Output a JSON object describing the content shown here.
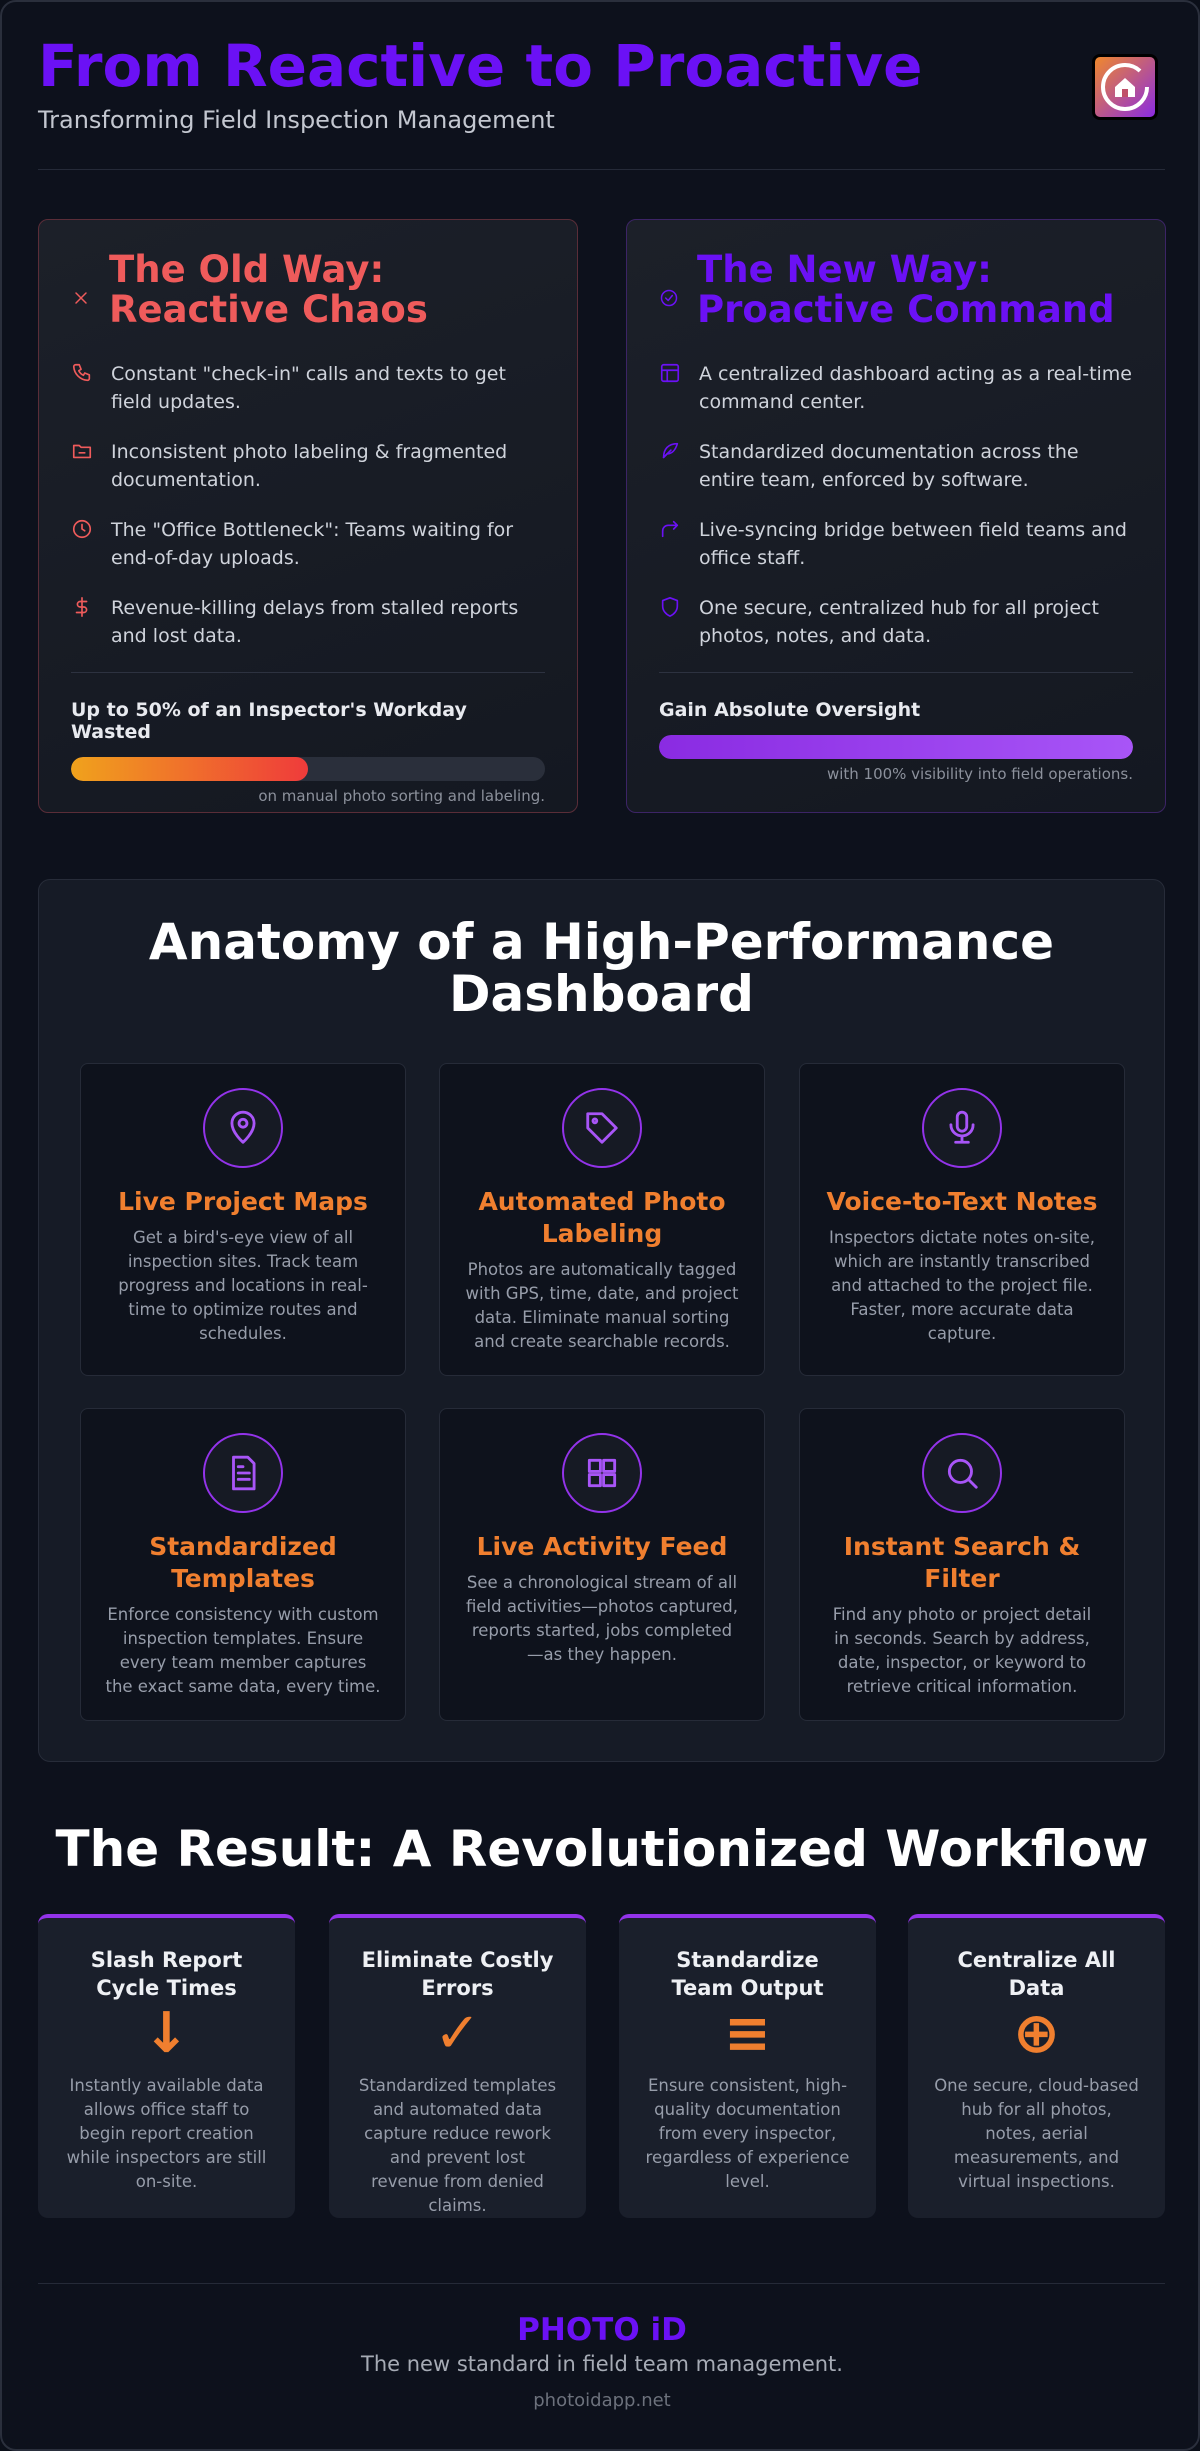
{
  "header": {
    "title": "From Reactive to Proactive",
    "subtitle": "Transforming Field Inspection Management"
  },
  "old_way": {
    "title": "The Old Way: Reactive Chaos",
    "items": [
      "Constant \"check-in\" calls and texts to get field updates.",
      "Inconsistent photo labeling & fragmented documentation.",
      "The \"Office Bottleneck\": Teams waiting for end-of-day uploads.",
      "Revenue-killing delays from stalled reports and lost data."
    ],
    "meter": {
      "label": "Up to 50% of an Inspector's Workday Wasted",
      "value": 50,
      "note": "on manual photo sorting and labeling."
    }
  },
  "new_way": {
    "title": "The New Way: Proactive Command",
    "items": [
      "A centralized dashboard acting as a real-time command center.",
      "Standardized documentation across the entire team, enforced by software.",
      "Live-syncing bridge between field teams and office staff.",
      "One secure, centralized hub for all project photos, notes, and data."
    ],
    "meter": {
      "label": "Gain Absolute Oversight",
      "value": 100,
      "note": "with 100% visibility into field operations."
    }
  },
  "dashboard": {
    "title": "Anatomy of a High-Performance Dashboard",
    "features": [
      {
        "title": "Live Project Maps",
        "text": "Get a bird's-eye view of all inspection sites. Track team progress and locations in real-time to optimize routes and schedules."
      },
      {
        "title": "Automated Photo Labeling",
        "text": "Photos are automatically tagged with GPS, time, date, and project data. Eliminate manual sorting and create searchable records."
      },
      {
        "title": "Voice-to-Text Notes",
        "text": "Inspectors dictate notes on-site, which are instantly transcribed and attached to the project file. Faster, more accurate data capture."
      },
      {
        "title": "Standardized Templates",
        "text": "Enforce consistency with custom inspection templates. Ensure every team member captures the exact same data, every time."
      },
      {
        "title": "Live Activity Feed",
        "text": "See a chronological stream of all field activities—photos captured, reports started, jobs completed—as they happen."
      },
      {
        "title": "Instant Search & Filter",
        "text": "Find any photo or project detail in seconds. Search by address, date, inspector, or keyword to retrieve critical information."
      }
    ]
  },
  "results": {
    "title": "The Result: A Revolutionized Workflow",
    "cards": [
      {
        "title": "Slash Report Cycle Times",
        "icon": "↓",
        "text": "Instantly available data allows office staff to begin report creation while inspectors are still on-site."
      },
      {
        "title": "Eliminate Costly Errors",
        "icon": "✓",
        "text": "Standardized templates and automated data capture reduce rework and prevent lost revenue from denied claims."
      },
      {
        "title": "Standardize Team Output",
        "icon": "≡",
        "text": "Ensure consistent, high-quality documentation from every inspector, regardless of experience level."
      },
      {
        "title": "Centralize All Data",
        "icon": "⊕",
        "text": "One secure, cloud-based hub for all photos, notes, aerial measurements, and virtual inspections."
      }
    ]
  },
  "footer": {
    "brand": "PHOTO iD",
    "tagline": "The new standard in field team management.",
    "url": "photoidapp.net"
  }
}
